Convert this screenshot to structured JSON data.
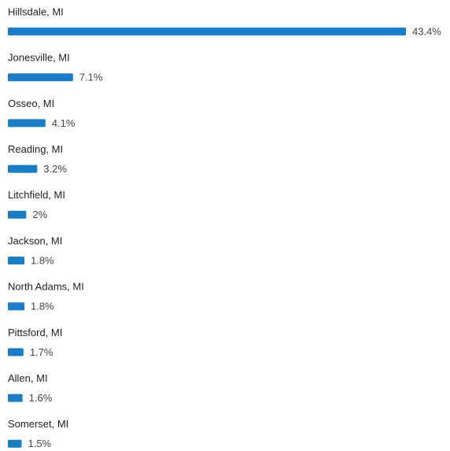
{
  "chart_data": {
    "type": "bar",
    "orientation": "horizontal",
    "categories": [
      "Hillsdale, MI",
      "Jonesville, MI",
      "Osseo, MI",
      "Reading, MI",
      "Litchfield, MI",
      "Jackson, MI",
      "North Adams, MI",
      "Pittsford, MI",
      "Allen, MI",
      "Somerset, MI"
    ],
    "values": [
      43.4,
      7.1,
      4.1,
      3.2,
      2,
      1.8,
      1.8,
      1.7,
      1.6,
      1.5
    ],
    "value_labels": [
      "43.4%",
      "7.1%",
      "4.1%",
      "3.2%",
      "2%",
      "1.8%",
      "1.8%",
      "1.7%",
      "1.6%",
      "1.5%"
    ],
    "color": "#1a7dc6"
  }
}
